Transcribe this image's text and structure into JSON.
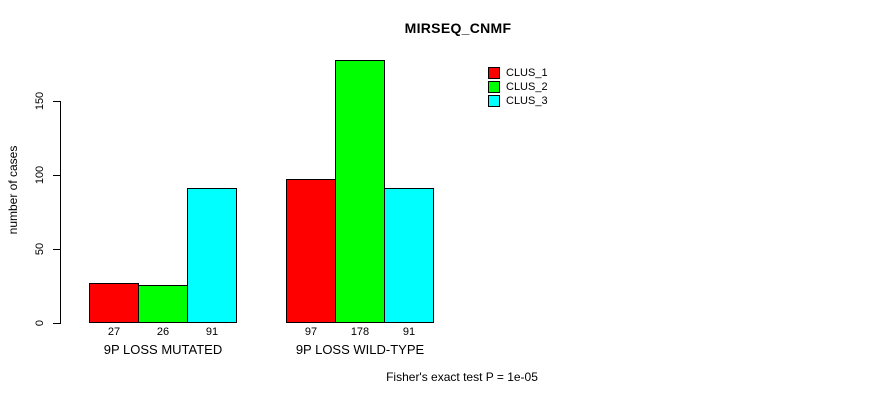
{
  "chart_data": {
    "type": "bar",
    "title": "MIRSEQ_CNMF",
    "ylabel": "number of cases",
    "xlabel": "",
    "categories": [
      "9P LOSS MUTATED",
      "9P LOSS WILD-TYPE"
    ],
    "series": [
      {
        "name": "CLUS_1",
        "color": "#ff0000",
        "values": [
          27,
          97
        ]
      },
      {
        "name": "CLUS_2",
        "color": "#00ff00",
        "values": [
          26,
          178
        ]
      },
      {
        "name": "CLUS_3",
        "color": "#00ffff",
        "values": [
          91,
          91
        ]
      }
    ],
    "bar_value_labels": [
      [
        27,
        26,
        91
      ],
      [
        97,
        178,
        91
      ]
    ],
    "yticks": [
      0,
      50,
      100,
      150
    ],
    "ylim": [
      0,
      178
    ],
    "grid": false,
    "legend": {
      "position": "top-right-inside"
    },
    "bar_border_color": "#000000",
    "background": "#ffffff",
    "footnote": "Fisher's exact test P = 1e-05"
  }
}
